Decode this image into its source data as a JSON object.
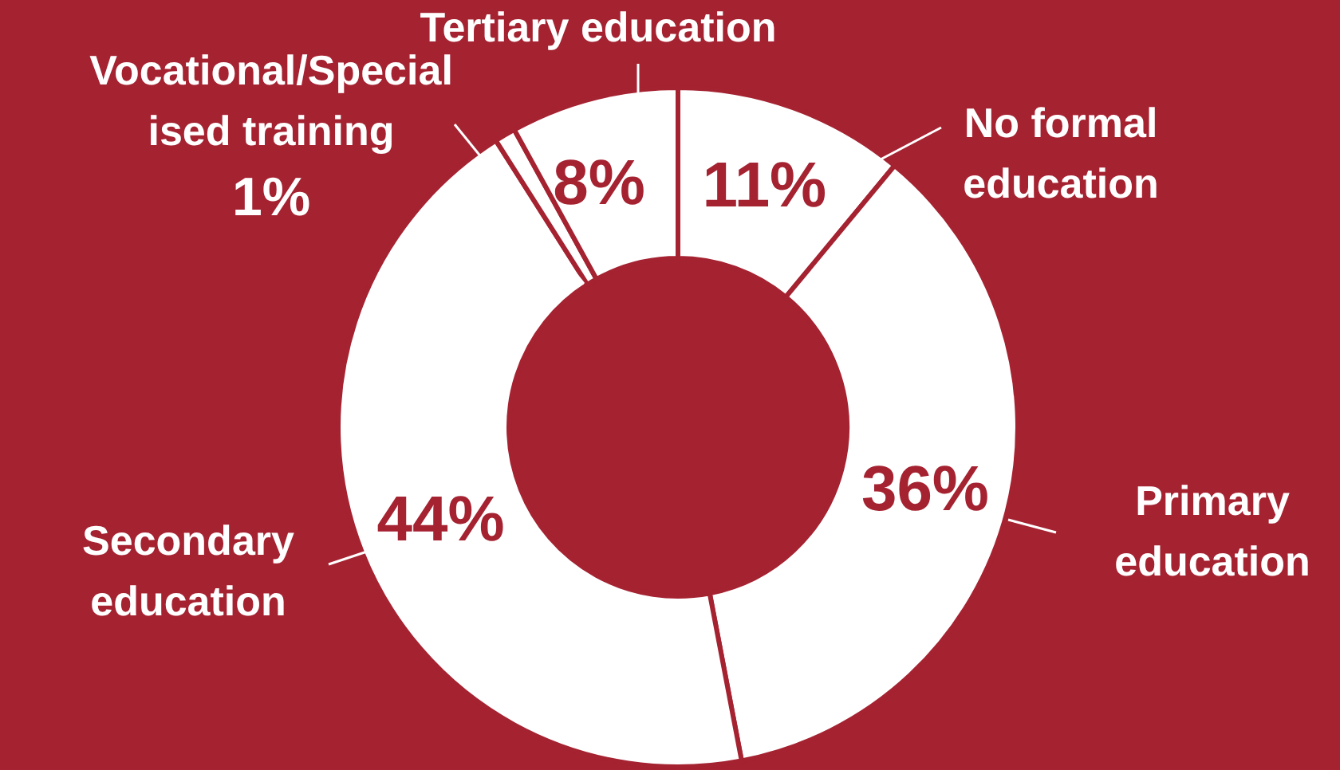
{
  "chart_data": {
    "type": "donut",
    "categories": [
      "No formal education",
      "Primary education",
      "Secondary education",
      "Vocational/Specialised training",
      "Tertiary education"
    ],
    "values": [
      11,
      36,
      44,
      1,
      8
    ],
    "colors": [
      "#ffffff",
      "#ffffff",
      "#ffffff",
      "#ffffff",
      "#ffffff"
    ],
    "value_labels": [
      "11%",
      "36%",
      "44%",
      "1%",
      "8%"
    ]
  }
}
